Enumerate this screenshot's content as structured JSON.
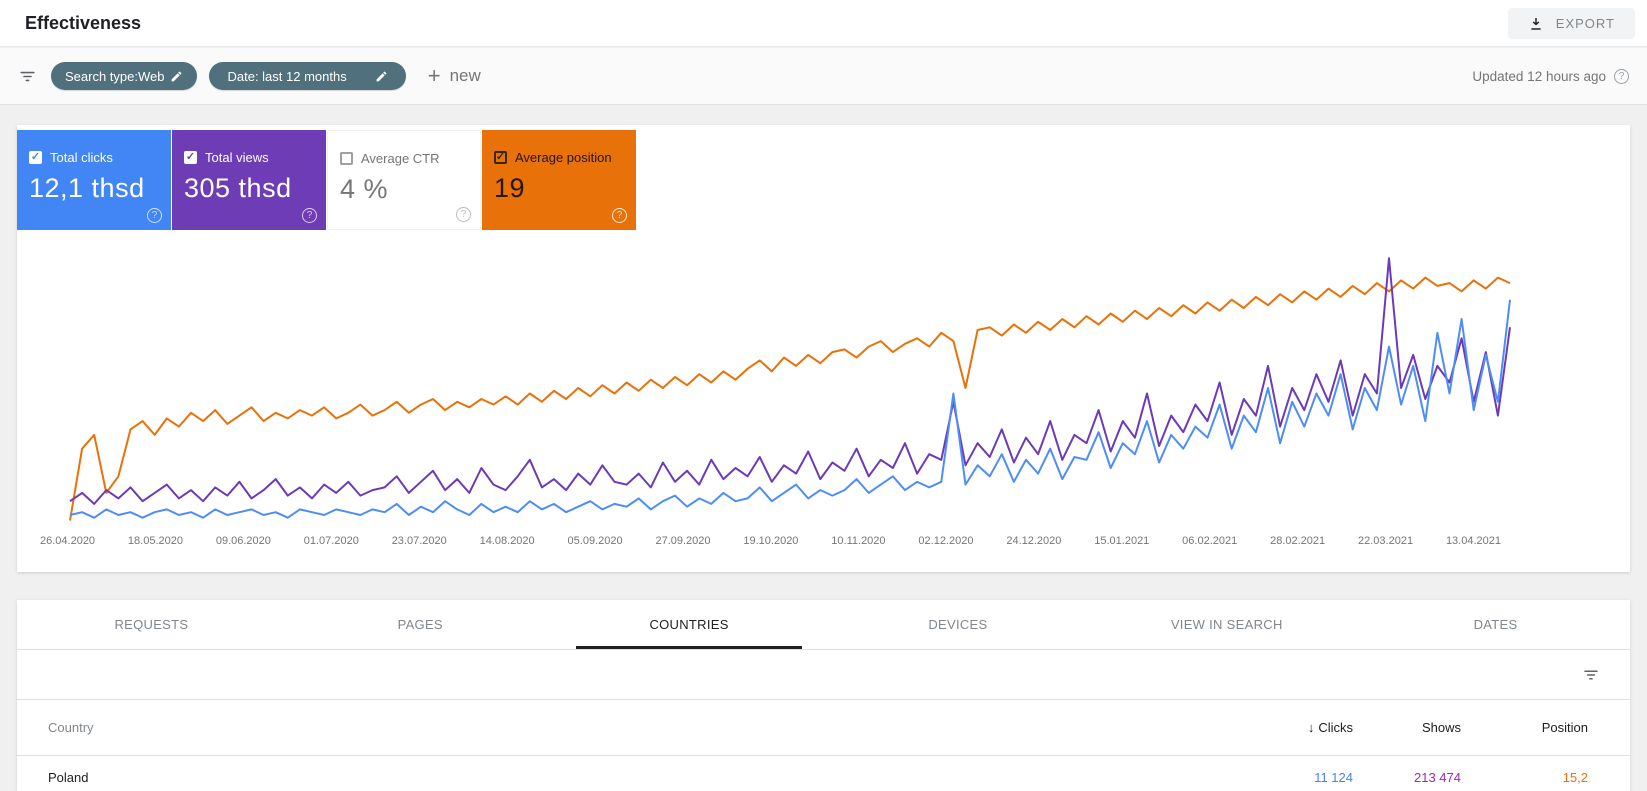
{
  "header": {
    "title": "Effectiveness",
    "export_label": "EXPORT"
  },
  "filter_bar": {
    "chips": [
      {
        "label": "Search type:Web"
      },
      {
        "label": "Date: last 12 months"
      }
    ],
    "new_label": "new",
    "updated_text": "Updated 12 hours ago"
  },
  "metrics": [
    {
      "label": "Total clicks",
      "value": "12,1 thsd",
      "bg": "#4285f4",
      "fg": "#ffffff",
      "checkbox": "white-filled",
      "help_color": "rgba(255,255,255,0.75)"
    },
    {
      "label": "Total views",
      "value": "305 thsd",
      "bg": "#6e3cb5",
      "fg": "#ffffff",
      "checkbox": "white-filled",
      "help_color": "rgba(255,255,255,0.75)"
    },
    {
      "label": "Average CTR",
      "value": "4 %",
      "bg": "#ffffff",
      "fg": "#757575",
      "checkbox": "empty",
      "help_color": "#bdbdbd"
    },
    {
      "label": "Average position",
      "value": "19",
      "bg": "#e8710a",
      "fg": "#251504",
      "checkbox": "dark-outline",
      "help_color": "rgba(255,255,255,0.85)"
    }
  ],
  "chart_data": {
    "type": "line",
    "title": "",
    "xlabel": "",
    "ylabel": "",
    "y_axis": "hidden — values are normalized 0-100 of plot height",
    "grid": false,
    "legend_position": "none",
    "x_labels": [
      "26.04.2020",
      "18.05.2020",
      "09.06.2020",
      "01.07.2020",
      "23.07.2020",
      "14.08.2020",
      "05.09.2020",
      "27.09.2020",
      "19.10.2020",
      "10.11.2020",
      "02.12.2020",
      "24.12.2020",
      "15.01.2021",
      "06.02.2021",
      "28.02.2021",
      "22.03.2021",
      "13.04.2021"
    ],
    "series": [
      {
        "name": "Total clicks",
        "color": "#4e8df6",
        "values": [
          4,
          5,
          3,
          6,
          4,
          5,
          3,
          5,
          6,
          4,
          5,
          3,
          6,
          4,
          5,
          6,
          4,
          5,
          3,
          6,
          5,
          4,
          6,
          5,
          4,
          6,
          5,
          8,
          4,
          7,
          5,
          9,
          6,
          4,
          8,
          5,
          7,
          5,
          9,
          6,
          8,
          5,
          7,
          9,
          6,
          8,
          7,
          10,
          6,
          9,
          11,
          7,
          10,
          8,
          12,
          9,
          10,
          14,
          9,
          12,
          15,
          10,
          13,
          11,
          13,
          17,
          12,
          15,
          18,
          13,
          16,
          14,
          16,
          48,
          15,
          22,
          18,
          26,
          16,
          24,
          19,
          28,
          17,
          25,
          24,
          34,
          21,
          30,
          26,
          38,
          23,
          33,
          28,
          36,
          32,
          44,
          28,
          40,
          34,
          50,
          30,
          45,
          36,
          48,
          40,
          55,
          35,
          50,
          42,
          65,
          44,
          58,
          38,
          70,
          48,
          75,
          42,
          62,
          45,
          82
        ]
      },
      {
        "name": "Total views",
        "color": "#6d3ab7",
        "values": [
          9,
          12,
          8,
          13,
          10,
          14,
          9,
          12,
          15,
          10,
          13,
          9,
          14,
          11,
          16,
          10,
          13,
          17,
          11,
          14,
          10,
          15,
          12,
          16,
          11,
          13,
          14,
          18,
          12,
          16,
          20,
          13,
          17,
          12,
          21,
          15,
          13,
          18,
          24,
          14,
          17,
          13,
          19,
          15,
          22,
          16,
          15,
          19,
          14,
          23,
          16,
          20,
          15,
          24,
          17,
          21,
          18,
          25,
          16,
          22,
          19,
          27,
          17,
          23,
          20,
          28,
          18,
          24,
          21,
          30,
          19,
          26,
          24,
          45,
          22,
          30,
          25,
          35,
          23,
          32,
          26,
          38,
          24,
          33,
          30,
          42,
          27,
          38,
          32,
          48,
          29,
          40,
          34,
          44,
          38,
          52,
          33,
          46,
          40,
          58,
          36,
          50,
          42,
          55,
          45,
          60,
          40,
          55,
          48,
          97,
          50,
          62,
          46,
          58,
          52,
          68,
          45,
          63,
          40,
          72
        ]
      },
      {
        "name": "Average position",
        "color": "#e8710a",
        "values": [
          2,
          28,
          33,
          12,
          18,
          35,
          38,
          33,
          39,
          36,
          41,
          38,
          42,
          37,
          40,
          43,
          38,
          41,
          39,
          42,
          40,
          43,
          39,
          41,
          44,
          40,
          42,
          45,
          41,
          44,
          46,
          42,
          45,
          43,
          46,
          44,
          47,
          44,
          48,
          45,
          49,
          46,
          50,
          47,
          51,
          48,
          52,
          49,
          53,
          50,
          54,
          51,
          55,
          52,
          56,
          53,
          57,
          60,
          56,
          61,
          58,
          62,
          59,
          63,
          64,
          61,
          65,
          67,
          63,
          66,
          68,
          65,
          70,
          67,
          50,
          71,
          72,
          69,
          73,
          70,
          74,
          71,
          75,
          72,
          76,
          73,
          77,
          74,
          78,
          75,
          79,
          76,
          80,
          77,
          81,
          78,
          82,
          79,
          83,
          80,
          84,
          81,
          85,
          82,
          86,
          83,
          87,
          84,
          88,
          85,
          89,
          86,
          90,
          87,
          88,
          85,
          89,
          86,
          90,
          88
        ]
      }
    ]
  },
  "tabs": {
    "items": [
      {
        "label": "REQUESTS",
        "active": false
      },
      {
        "label": "PAGES",
        "active": false
      },
      {
        "label": "COUNTRIES",
        "active": true
      },
      {
        "label": "DEVICES",
        "active": false
      },
      {
        "label": "VIEW IN SEARCH",
        "active": false
      },
      {
        "label": "DATES",
        "active": false
      }
    ]
  },
  "table": {
    "columns": {
      "country": "Country",
      "clicks": "Clicks",
      "shows": "Shows",
      "position": "Position"
    },
    "sort_column": "clicks",
    "value_colors": {
      "clicks": "#4285f4",
      "shows": "#9c27b0",
      "position": "#e8710a"
    },
    "rows": [
      {
        "country": "Poland",
        "clicks": "11 124",
        "shows": "213 474",
        "position": "15,2"
      }
    ]
  }
}
